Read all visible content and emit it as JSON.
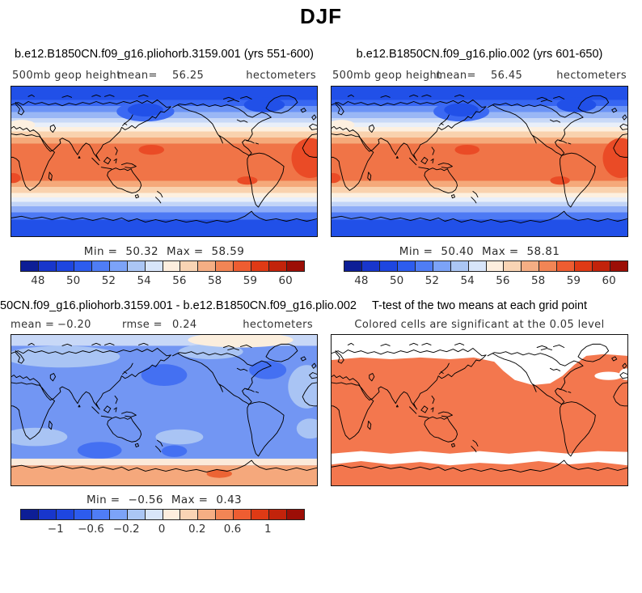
{
  "figure": {
    "title": "DJF"
  },
  "panels": {
    "case1": {
      "title": "b.e12.B1850CN.f09_g16.pliohorb.3159.001 (yrs 551-600)",
      "field": "500mb geop height",
      "mean_label": "mean=",
      "mean_value": "56.25",
      "units": "hectometers",
      "min_label": "Min =",
      "min_value": "50.32",
      "max_label": "Max =",
      "max_value": "58.59",
      "cbar_ticks": [
        "48",
        "50",
        "52",
        "54",
        "56",
        "58",
        "59",
        "60"
      ]
    },
    "case2": {
      "title": "b.e12.B1850CN.f09_g16.plio.002 (yrs 601-650)",
      "field": "500mb geop height",
      "mean_label": "mean=",
      "mean_value": "56.45",
      "units": "hectometers",
      "min_label": "Min =",
      "min_value": "50.40",
      "max_label": "Max =",
      "max_value": "58.81",
      "cbar_ticks": [
        "48",
        "50",
        "52",
        "54",
        "56",
        "58",
        "59",
        "60"
      ]
    },
    "diff": {
      "title": "50CN.f09_g16.pliohorb.3159.001 - b.e12.B1850CN.f09_g16.plio.002",
      "mean_label": "mean =",
      "mean_value": "−0.20",
      "rmse_label": "rmse =",
      "rmse_value": "0.24",
      "units": "hectometers",
      "min_label": "Min =",
      "min_value": "−0.56",
      "max_label": "Max =",
      "max_value": "0.43",
      "cbar_ticks": [
        "−1",
        "−0.6",
        "−0.2",
        "0",
        "0.2",
        "0.6",
        "1"
      ]
    },
    "ttest": {
      "title": "T-test of the two means at each grid point",
      "subtitle": "Colored cells are significant at the 0.05 level"
    }
  },
  "colors": {
    "palette16": [
      "#0d1e96",
      "#1836cc",
      "#1e46e0",
      "#2d5cee",
      "#4f7df5",
      "#7ca3f8",
      "#abc6f4",
      "#d8e5f9",
      "#fdeede",
      "#f9d4b4",
      "#f5ae84",
      "#f28555",
      "#ee5d31",
      "#df3a15",
      "#c2230b",
      "#9c0e06"
    ],
    "ttest_significant": "#f3774e",
    "coastline": "#000000"
  },
  "chart_data": [
    {
      "type": "heatmap",
      "subtype": "global lat-lon contour map",
      "season": "DJF",
      "title": "b.e12.B1850CN.f09_g16.pliohorb.3159.001 (yrs 551-600)",
      "variable": "500mb geop height",
      "units": "hectometers",
      "mean": 56.25,
      "min": 50.32,
      "max": 58.59,
      "colorbar_tick_labels": [
        48,
        50,
        52,
        54,
        56,
        58,
        59,
        60
      ],
      "palette": "16-level blue-white-red diverging",
      "pattern": "zonal bands: blue lows at both poles, orange-red highs (~58-59) across the tropics"
    },
    {
      "type": "heatmap",
      "subtype": "global lat-lon contour map",
      "season": "DJF",
      "title": "b.e12.B1850CN.f09_g16.plio.002 (yrs 601-650)",
      "variable": "500mb geop height",
      "units": "hectometers",
      "mean": 56.45,
      "min": 50.4,
      "max": 58.81,
      "colorbar_tick_labels": [
        48,
        50,
        52,
        54,
        56,
        58,
        59,
        60
      ],
      "palette": "16-level blue-white-red diverging",
      "pattern": "zonal bands: blue lows at both poles, orange-red highs (~58-59) across the tropics"
    },
    {
      "type": "heatmap",
      "subtype": "difference map (case1 - case2)",
      "season": "DJF",
      "title": "50CN.f09_g16.pliohorb.3159.001 - b.e12.B1850CN.f09_g16.plio.002",
      "units": "hectometers",
      "mean": -0.2,
      "rmse": 0.24,
      "min": -0.56,
      "max": 0.43,
      "colorbar_tick_labels": [
        -1,
        -0.6,
        -0.2,
        0,
        0.2,
        0.6,
        1
      ],
      "palette": "16-level blue-white-red diverging",
      "pattern": "weak negative (light-medium blue, ~-0.2) over most of the globe with darker blue minima in the N Pacific, NE North America and south of Australia; pale positive patch near Greenland/Arctic; positive band (~+0.2) over Antarctica"
    },
    {
      "type": "heatmap",
      "subtype": "significance mask",
      "title": "T-test of the two means at each grid point",
      "subtitle": "Colored cells are significant at the 0.05 level",
      "significant_color": "#f3774e",
      "pattern": "significant (orange) nearly everywhere except the northern high latitudes, a wavy band near 60S, and a small patch near the eastern mid-latitude edge"
    }
  ]
}
